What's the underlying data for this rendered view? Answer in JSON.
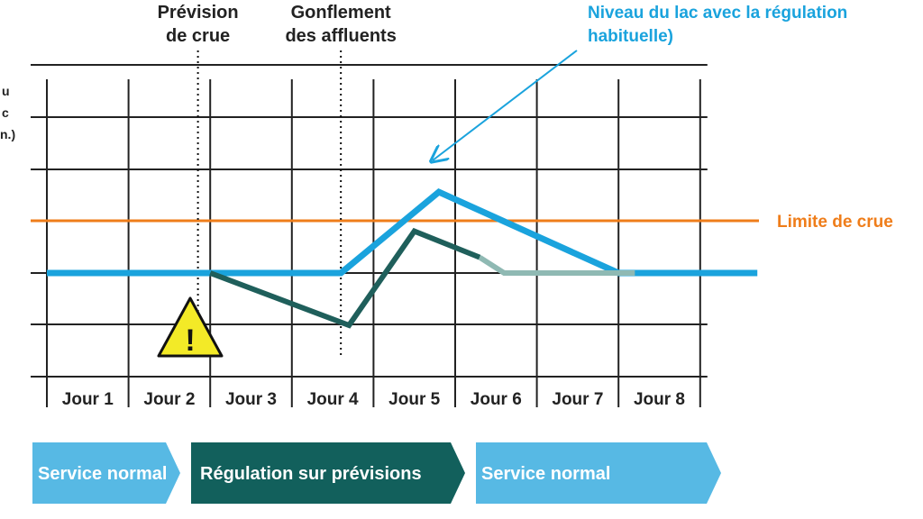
{
  "chart_data": {
    "type": "line",
    "title": "",
    "ylabel_fragments": [
      "u",
      "c",
      "n.)"
    ],
    "categories": [
      "Jour 1",
      "Jour 2",
      "Jour 3",
      "Jour 4",
      "Jour 5",
      "Jour 6",
      "Jour 7",
      "Jour 8"
    ],
    "grid": true,
    "flood_limit": {
      "label": "Limite de crue",
      "level": 4.3
    },
    "series": [
      {
        "name": "Niveau du lac avec la régulation habituelle)",
        "color": "#1aa3dd",
        "x": [
          0,
          2,
          3.6,
          4.8,
          7,
          8.7
        ],
        "y": [
          3.3,
          3.3,
          3.3,
          4.85,
          3.3,
          3.3
        ]
      },
      {
        "name": "",
        "color": "#1f5f5b",
        "x": [
          2,
          3.7,
          4.5,
          5.3
        ],
        "y": [
          3.3,
          2.3,
          4.1,
          3.6
        ]
      },
      {
        "name": "",
        "color": "#8fb9b3",
        "x": [
          5.3,
          5.6,
          7,
          7.2
        ],
        "y": [
          3.6,
          3.3,
          3.3,
          3.3
        ]
      }
    ],
    "events": [
      {
        "label_lines": [
          "Prévision",
          "de crue"
        ],
        "x": 1.85
      },
      {
        "label_lines": [
          "Gonflement",
          "des affluents"
        ],
        "x": 3.6
      }
    ],
    "warning_symbol": "!",
    "phases": [
      {
        "label": "Service normal",
        "color": "#57b9e4"
      },
      {
        "label": "Régulation sur prévisions",
        "color": "#12605c"
      },
      {
        "label": "Service normal",
        "color": "#57b9e4"
      }
    ],
    "colors": {
      "grid": "#222222",
      "flood_limit": "#ef7d1a",
      "blue_label": "#1aa3dd"
    }
  }
}
